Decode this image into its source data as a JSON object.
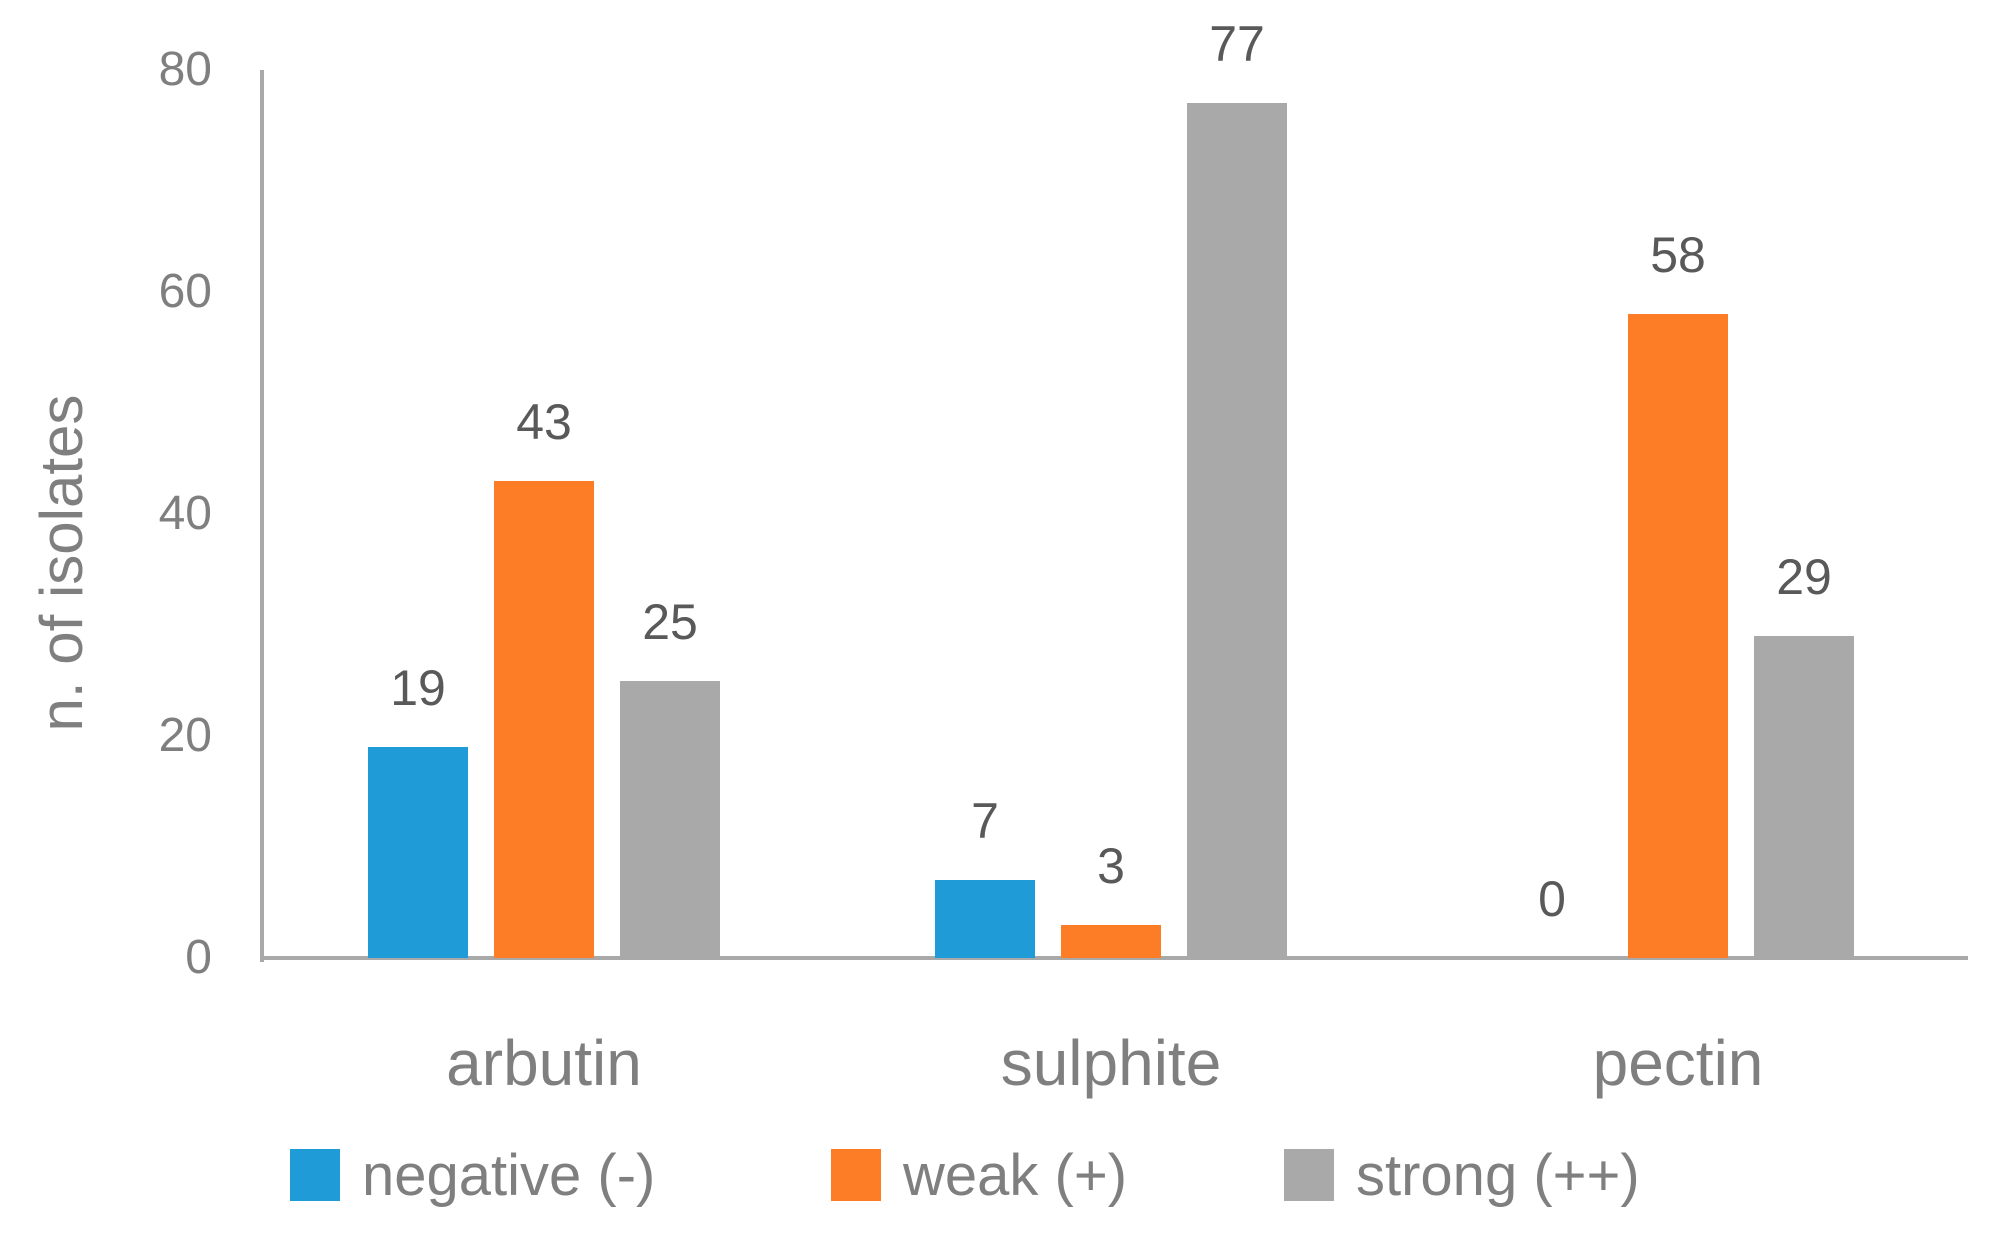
{
  "chart_data": {
    "type": "bar",
    "title": "",
    "xlabel": "",
    "ylabel": "n. of isolates",
    "categories": [
      "arbutin",
      "sulphite",
      "pectin"
    ],
    "series": [
      {
        "name": "negative (-)",
        "color": "#1F9CD7",
        "values": [
          19,
          7,
          0
        ]
      },
      {
        "name": "weak (+)",
        "color": "#FD7D26",
        "values": [
          43,
          3,
          58
        ]
      },
      {
        "name": "strong (++)",
        "color": "#A9A9A9",
        "values": [
          25,
          77,
          29
        ]
      }
    ],
    "ylim": [
      0,
      80
    ],
    "yticks": [
      0,
      20,
      40,
      60,
      80
    ],
    "grid": false,
    "legend_position": "bottom",
    "data_labels": true,
    "colors": {
      "axis": "#A9A9A9",
      "tick_label": "#7F7F7F",
      "category_label": "#7F7F7F",
      "data_label": "#595959",
      "legend_label": "#7F7F7F",
      "background": "#FFFFFF"
    }
  }
}
